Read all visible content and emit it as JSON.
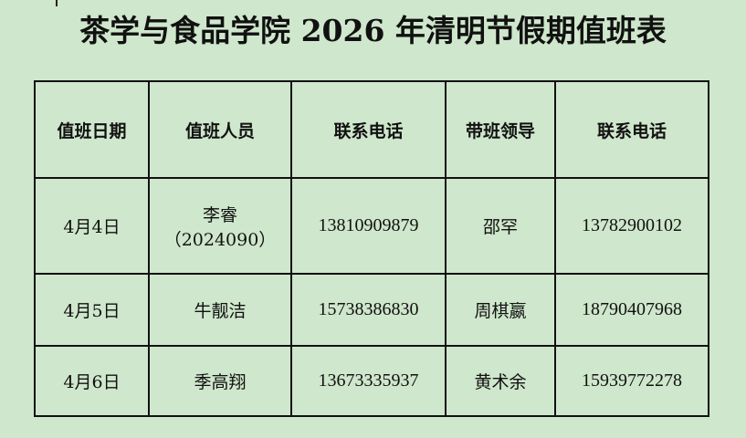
{
  "title": "茶学与食品学院 2026 年清明节假期值班表",
  "table": {
    "headers": [
      "值班日期",
      "值班人员",
      "联系电话",
      "带班领导",
      "联系电话"
    ],
    "rows": [
      {
        "date": "4月4日",
        "staff": "李睿",
        "staff_note": "（2024090）",
        "staff_phone": "13810909879",
        "leader": "邵罕",
        "leader_phone": "13782900102"
      },
      {
        "date": "4月5日",
        "staff": "牛靓洁",
        "staff_note": "",
        "staff_phone": "15738386830",
        "leader": "周棋嬴",
        "leader_phone": "18790407968"
      },
      {
        "date": "4月6日",
        "staff": "季高翔",
        "staff_note": "",
        "staff_phone": "13673335937",
        "leader": "黄术余",
        "leader_phone": "15939772278"
      }
    ]
  }
}
